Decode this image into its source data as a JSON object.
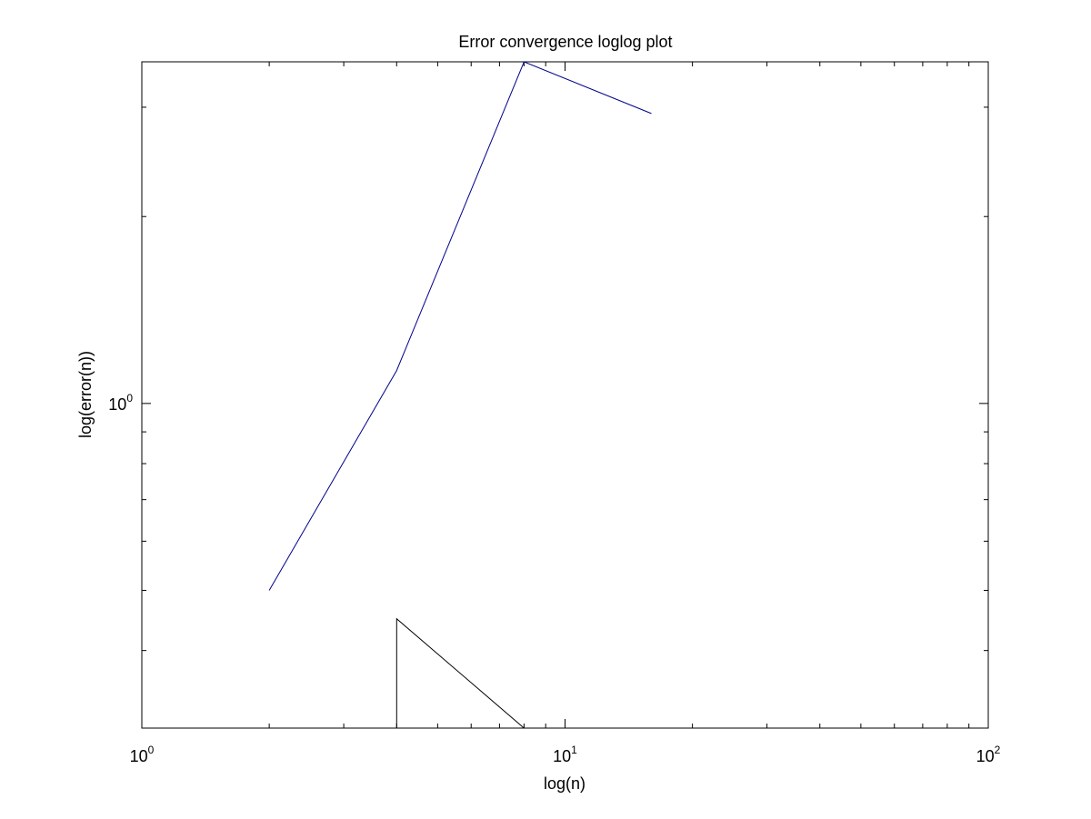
{
  "chart_data": {
    "type": "line",
    "title": "Error convergence loglog plot",
    "xlabel": "log(n)",
    "ylabel": "log(error(n))",
    "x_scale": "log",
    "y_scale": "log",
    "xlim": [
      1,
      100
    ],
    "ylim": [
      0.3,
      3.55
    ],
    "grid": false,
    "x_ticks": [
      {
        "value": 1,
        "base": "10",
        "exp": "0"
      },
      {
        "value": 10,
        "base": "10",
        "exp": "1"
      },
      {
        "value": 100,
        "base": "10",
        "exp": "2"
      }
    ],
    "y_ticks": [
      {
        "value": 1,
        "base": "10",
        "exp": "0"
      }
    ],
    "series": [
      {
        "color": "#00008b",
        "x": [
          2,
          4,
          8,
          16
        ],
        "y": [
          0.5,
          1.13,
          3.55,
          2.93
        ]
      },
      {
        "color": "#000000",
        "x": [
          4,
          4,
          8
        ],
        "y": [
          0.3,
          0.45,
          0.3
        ]
      }
    ]
  }
}
